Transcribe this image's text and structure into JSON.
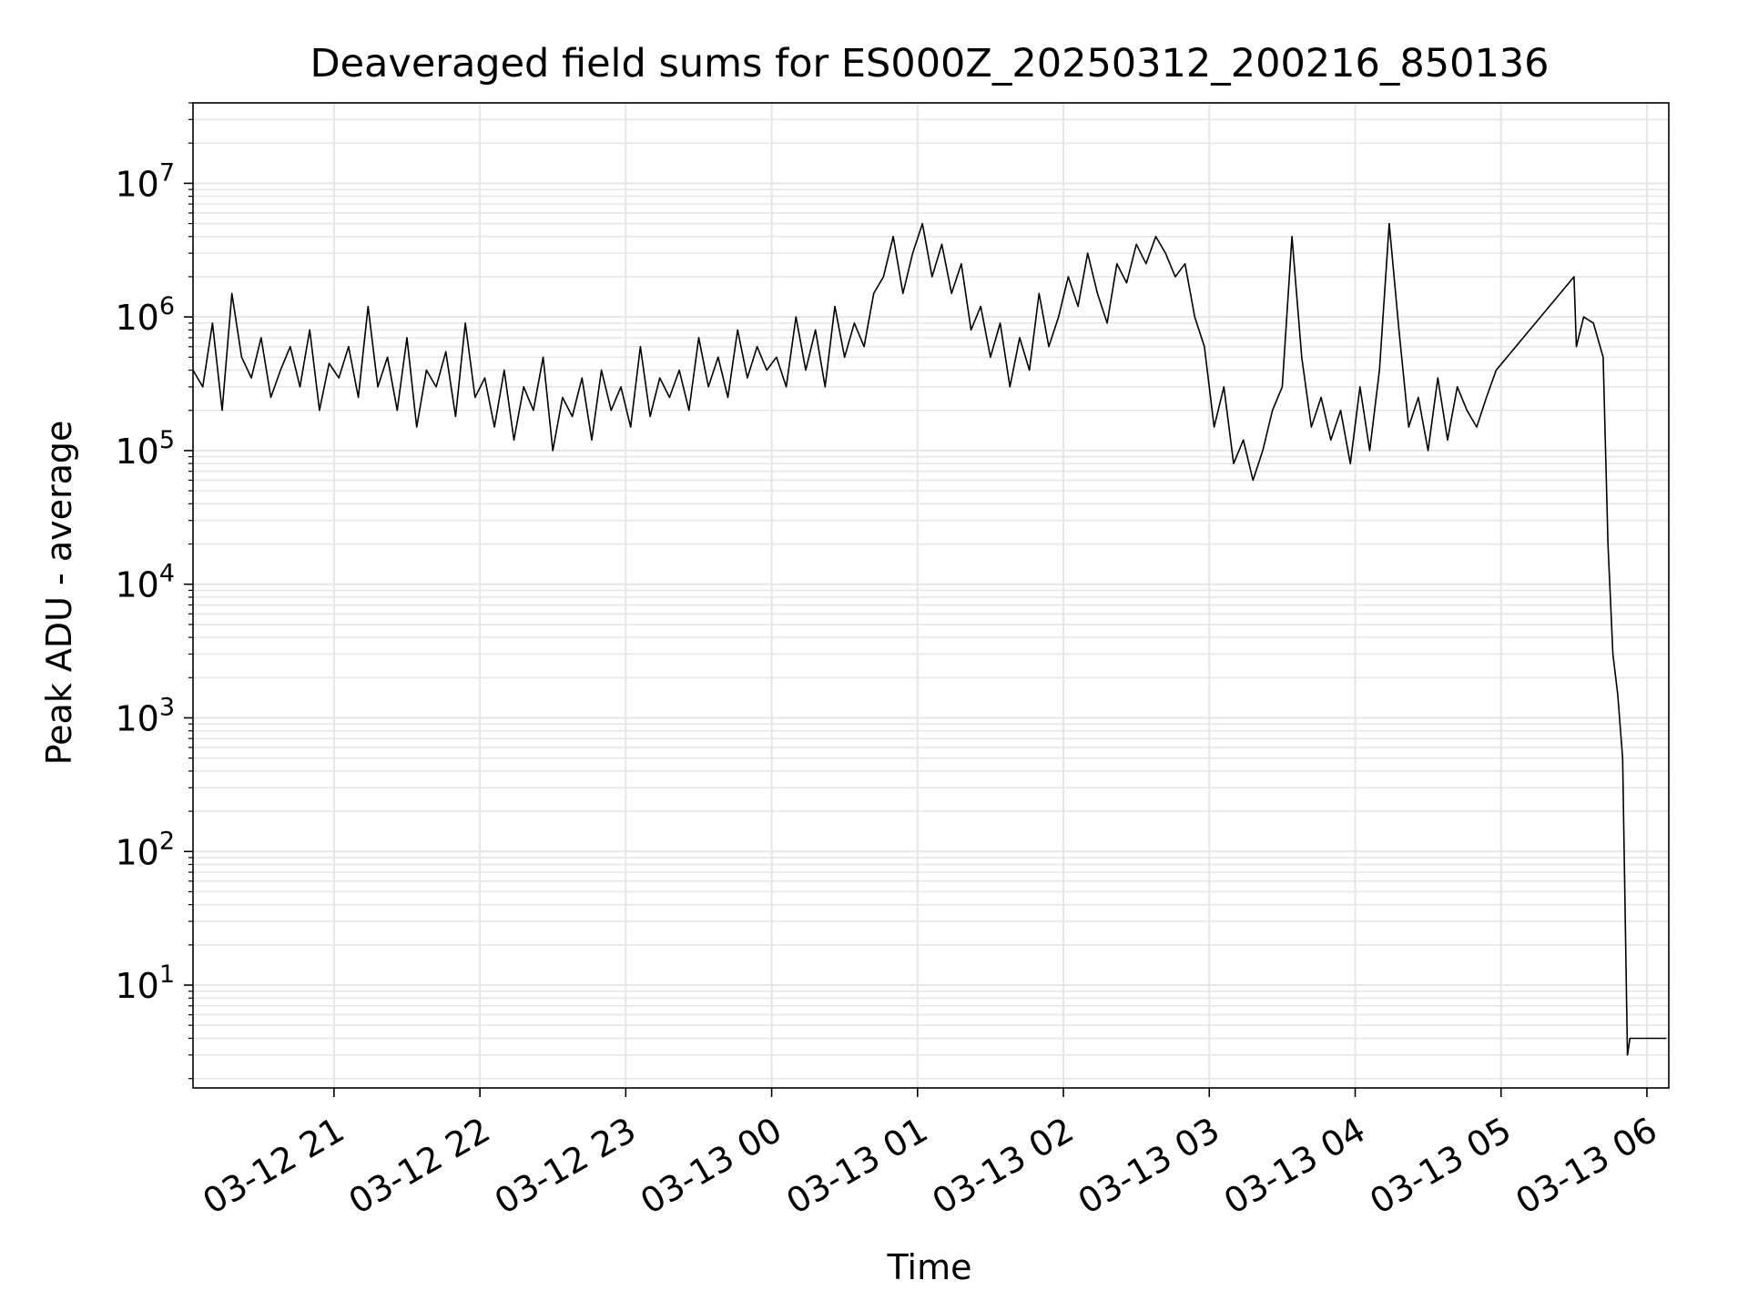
{
  "chart_data": {
    "type": "line",
    "title": "Deaveraged field sums for ES000Z_20250312_200216_850136",
    "xlabel": "Time",
    "ylabel": "Peak ADU - average",
    "y_scale": "log",
    "ylim": [
      1.7,
      40000000
    ],
    "xlim": [
      "2025-03-12 20:02",
      "2025-03-13 06:09"
    ],
    "grid": true,
    "line_color": "#000000",
    "grid_color": "#e6e6e6",
    "x_ticks": [
      {
        "t": "2025-03-12 21:00",
        "label": "03-12 21"
      },
      {
        "t": "2025-03-12 22:00",
        "label": "03-12 22"
      },
      {
        "t": "2025-03-12 23:00",
        "label": "03-12 23"
      },
      {
        "t": "2025-03-13 00:00",
        "label": "03-13 00"
      },
      {
        "t": "2025-03-13 01:00",
        "label": "03-13 01"
      },
      {
        "t": "2025-03-13 02:00",
        "label": "03-13 02"
      },
      {
        "t": "2025-03-13 03:00",
        "label": "03-13 03"
      },
      {
        "t": "2025-03-13 04:00",
        "label": "03-13 04"
      },
      {
        "t": "2025-03-13 05:00",
        "label": "03-13 05"
      },
      {
        "t": "2025-03-13 06:00",
        "label": "03-13 06"
      }
    ],
    "y_ticks": [
      {
        "value": 10,
        "base": "10",
        "exp": "1"
      },
      {
        "value": 100,
        "base": "10",
        "exp": "2"
      },
      {
        "value": 1000,
        "base": "10",
        "exp": "3"
      },
      {
        "value": 10000,
        "base": "10",
        "exp": "4"
      },
      {
        "value": 100000,
        "base": "10",
        "exp": "5"
      },
      {
        "value": 1000000,
        "base": "10",
        "exp": "6"
      },
      {
        "value": 10000000,
        "base": "10",
        "exp": "7"
      }
    ],
    "series": [
      {
        "x": [
          "2025-03-12 20:02",
          "2025-03-12 20:06",
          "2025-03-12 20:10",
          "2025-03-12 20:14",
          "2025-03-12 20:18",
          "2025-03-12 20:22",
          "2025-03-12 20:26",
          "2025-03-12 20:30",
          "2025-03-12 20:34",
          "2025-03-12 20:38",
          "2025-03-12 20:42",
          "2025-03-12 20:46",
          "2025-03-12 20:50",
          "2025-03-12 20:54",
          "2025-03-12 20:58",
          "2025-03-12 21:02",
          "2025-03-12 21:06",
          "2025-03-12 21:10",
          "2025-03-12 21:14",
          "2025-03-12 21:18",
          "2025-03-12 21:22",
          "2025-03-12 21:26",
          "2025-03-12 21:30",
          "2025-03-12 21:34",
          "2025-03-12 21:38",
          "2025-03-12 21:42",
          "2025-03-12 21:46",
          "2025-03-12 21:50",
          "2025-03-12 21:54",
          "2025-03-12 21:58",
          "2025-03-12 22:02",
          "2025-03-12 22:06",
          "2025-03-12 22:10",
          "2025-03-12 22:14",
          "2025-03-12 22:18",
          "2025-03-12 22:22",
          "2025-03-12 22:26",
          "2025-03-12 22:30",
          "2025-03-12 22:34",
          "2025-03-12 22:38",
          "2025-03-12 22:42",
          "2025-03-12 22:46",
          "2025-03-12 22:50",
          "2025-03-12 22:54",
          "2025-03-12 22:58",
          "2025-03-12 23:02",
          "2025-03-12 23:06",
          "2025-03-12 23:10",
          "2025-03-12 23:14",
          "2025-03-12 23:18",
          "2025-03-12 23:22",
          "2025-03-12 23:26",
          "2025-03-12 23:30",
          "2025-03-12 23:34",
          "2025-03-12 23:38",
          "2025-03-12 23:42",
          "2025-03-12 23:46",
          "2025-03-12 23:50",
          "2025-03-12 23:54",
          "2025-03-12 23:58",
          "2025-03-13 00:02",
          "2025-03-13 00:06",
          "2025-03-13 00:10",
          "2025-03-13 00:14",
          "2025-03-13 00:18",
          "2025-03-13 00:22",
          "2025-03-13 00:26",
          "2025-03-13 00:30",
          "2025-03-13 00:34",
          "2025-03-13 00:38",
          "2025-03-13 00:42",
          "2025-03-13 00:46",
          "2025-03-13 00:50",
          "2025-03-13 00:54",
          "2025-03-13 00:58",
          "2025-03-13 01:02",
          "2025-03-13 01:06",
          "2025-03-13 01:10",
          "2025-03-13 01:14",
          "2025-03-13 01:18",
          "2025-03-13 01:22",
          "2025-03-13 01:26",
          "2025-03-13 01:30",
          "2025-03-13 01:34",
          "2025-03-13 01:38",
          "2025-03-13 01:42",
          "2025-03-13 01:46",
          "2025-03-13 01:50",
          "2025-03-13 01:54",
          "2025-03-13 01:58",
          "2025-03-13 02:02",
          "2025-03-13 02:06",
          "2025-03-13 02:10",
          "2025-03-13 02:14",
          "2025-03-13 02:18",
          "2025-03-13 02:22",
          "2025-03-13 02:26",
          "2025-03-13 02:30",
          "2025-03-13 02:34",
          "2025-03-13 02:38",
          "2025-03-13 02:42",
          "2025-03-13 02:46",
          "2025-03-13 02:50",
          "2025-03-13 02:54",
          "2025-03-13 02:58",
          "2025-03-13 03:02",
          "2025-03-13 03:06",
          "2025-03-13 03:10",
          "2025-03-13 03:14",
          "2025-03-13 03:18",
          "2025-03-13 03:22",
          "2025-03-13 03:26",
          "2025-03-13 03:30",
          "2025-03-13 03:34",
          "2025-03-13 03:38",
          "2025-03-13 03:42",
          "2025-03-13 03:46",
          "2025-03-13 03:50",
          "2025-03-13 03:54",
          "2025-03-13 03:58",
          "2025-03-13 04:02",
          "2025-03-13 04:06",
          "2025-03-13 04:10",
          "2025-03-13 04:14",
          "2025-03-13 04:18",
          "2025-03-13 04:22",
          "2025-03-13 04:26",
          "2025-03-13 04:30",
          "2025-03-13 04:34",
          "2025-03-13 04:38",
          "2025-03-13 04:42",
          "2025-03-13 04:46",
          "2025-03-13 04:50",
          "2025-03-13 04:54",
          "2025-03-13 04:58",
          "2025-03-13 05:30",
          "2025-03-13 05:31",
          "2025-03-13 05:34",
          "2025-03-13 05:38",
          "2025-03-13 05:42",
          "2025-03-13 05:44",
          "2025-03-13 05:46",
          "2025-03-13 05:48",
          "2025-03-13 05:50",
          "2025-03-13 05:52",
          "2025-03-13 05:53",
          "2025-03-13 05:54",
          "2025-03-13 05:56",
          "2025-03-13 06:00",
          "2025-03-13 06:04",
          "2025-03-13 06:08"
        ],
        "y": [
          400000,
          300000,
          900000,
          200000,
          1500000,
          500000,
          350000,
          700000,
          250000,
          400000,
          600000,
          300000,
          800000,
          200000,
          450000,
          350000,
          600000,
          250000,
          1200000,
          300000,
          500000,
          200000,
          700000,
          150000,
          400000,
          300000,
          550000,
          180000,
          900000,
          250000,
          350000,
          150000,
          400000,
          120000,
          300000,
          200000,
          500000,
          100000,
          250000,
          180000,
          350000,
          120000,
          400000,
          200000,
          300000,
          150000,
          600000,
          180000,
          350000,
          250000,
          400000,
          200000,
          700000,
          300000,
          500000,
          250000,
          800000,
          350000,
          600000,
          400000,
          500000,
          300000,
          1000000,
          400000,
          800000,
          300000,
          1200000,
          500000,
          900000,
          600000,
          1500000,
          2000000,
          4000000,
          1500000,
          3000000,
          5000000,
          2000000,
          3500000,
          1500000,
          2500000,
          800000,
          1200000,
          500000,
          900000,
          300000,
          700000,
          400000,
          1500000,
          600000,
          1000000,
          2000000,
          1200000,
          3000000,
          1500000,
          900000,
          2500000,
          1800000,
          3500000,
          2500000,
          4000000,
          3000000,
          2000000,
          2500000,
          1000000,
          600000,
          150000,
          300000,
          80000,
          120000,
          60000,
          100000,
          200000,
          300000,
          4000000,
          500000,
          150000,
          250000,
          120000,
          200000,
          80000,
          300000,
          100000,
          400000,
          5000000,
          800000,
          150000,
          250000,
          100000,
          350000,
          120000,
          300000,
          200000,
          150000,
          250000,
          400000,
          2000000,
          600000,
          1000000,
          900000,
          500000,
          20000,
          3000,
          1500,
          500,
          3,
          4,
          4,
          4,
          4,
          4,
          4
        ]
      }
    ]
  }
}
